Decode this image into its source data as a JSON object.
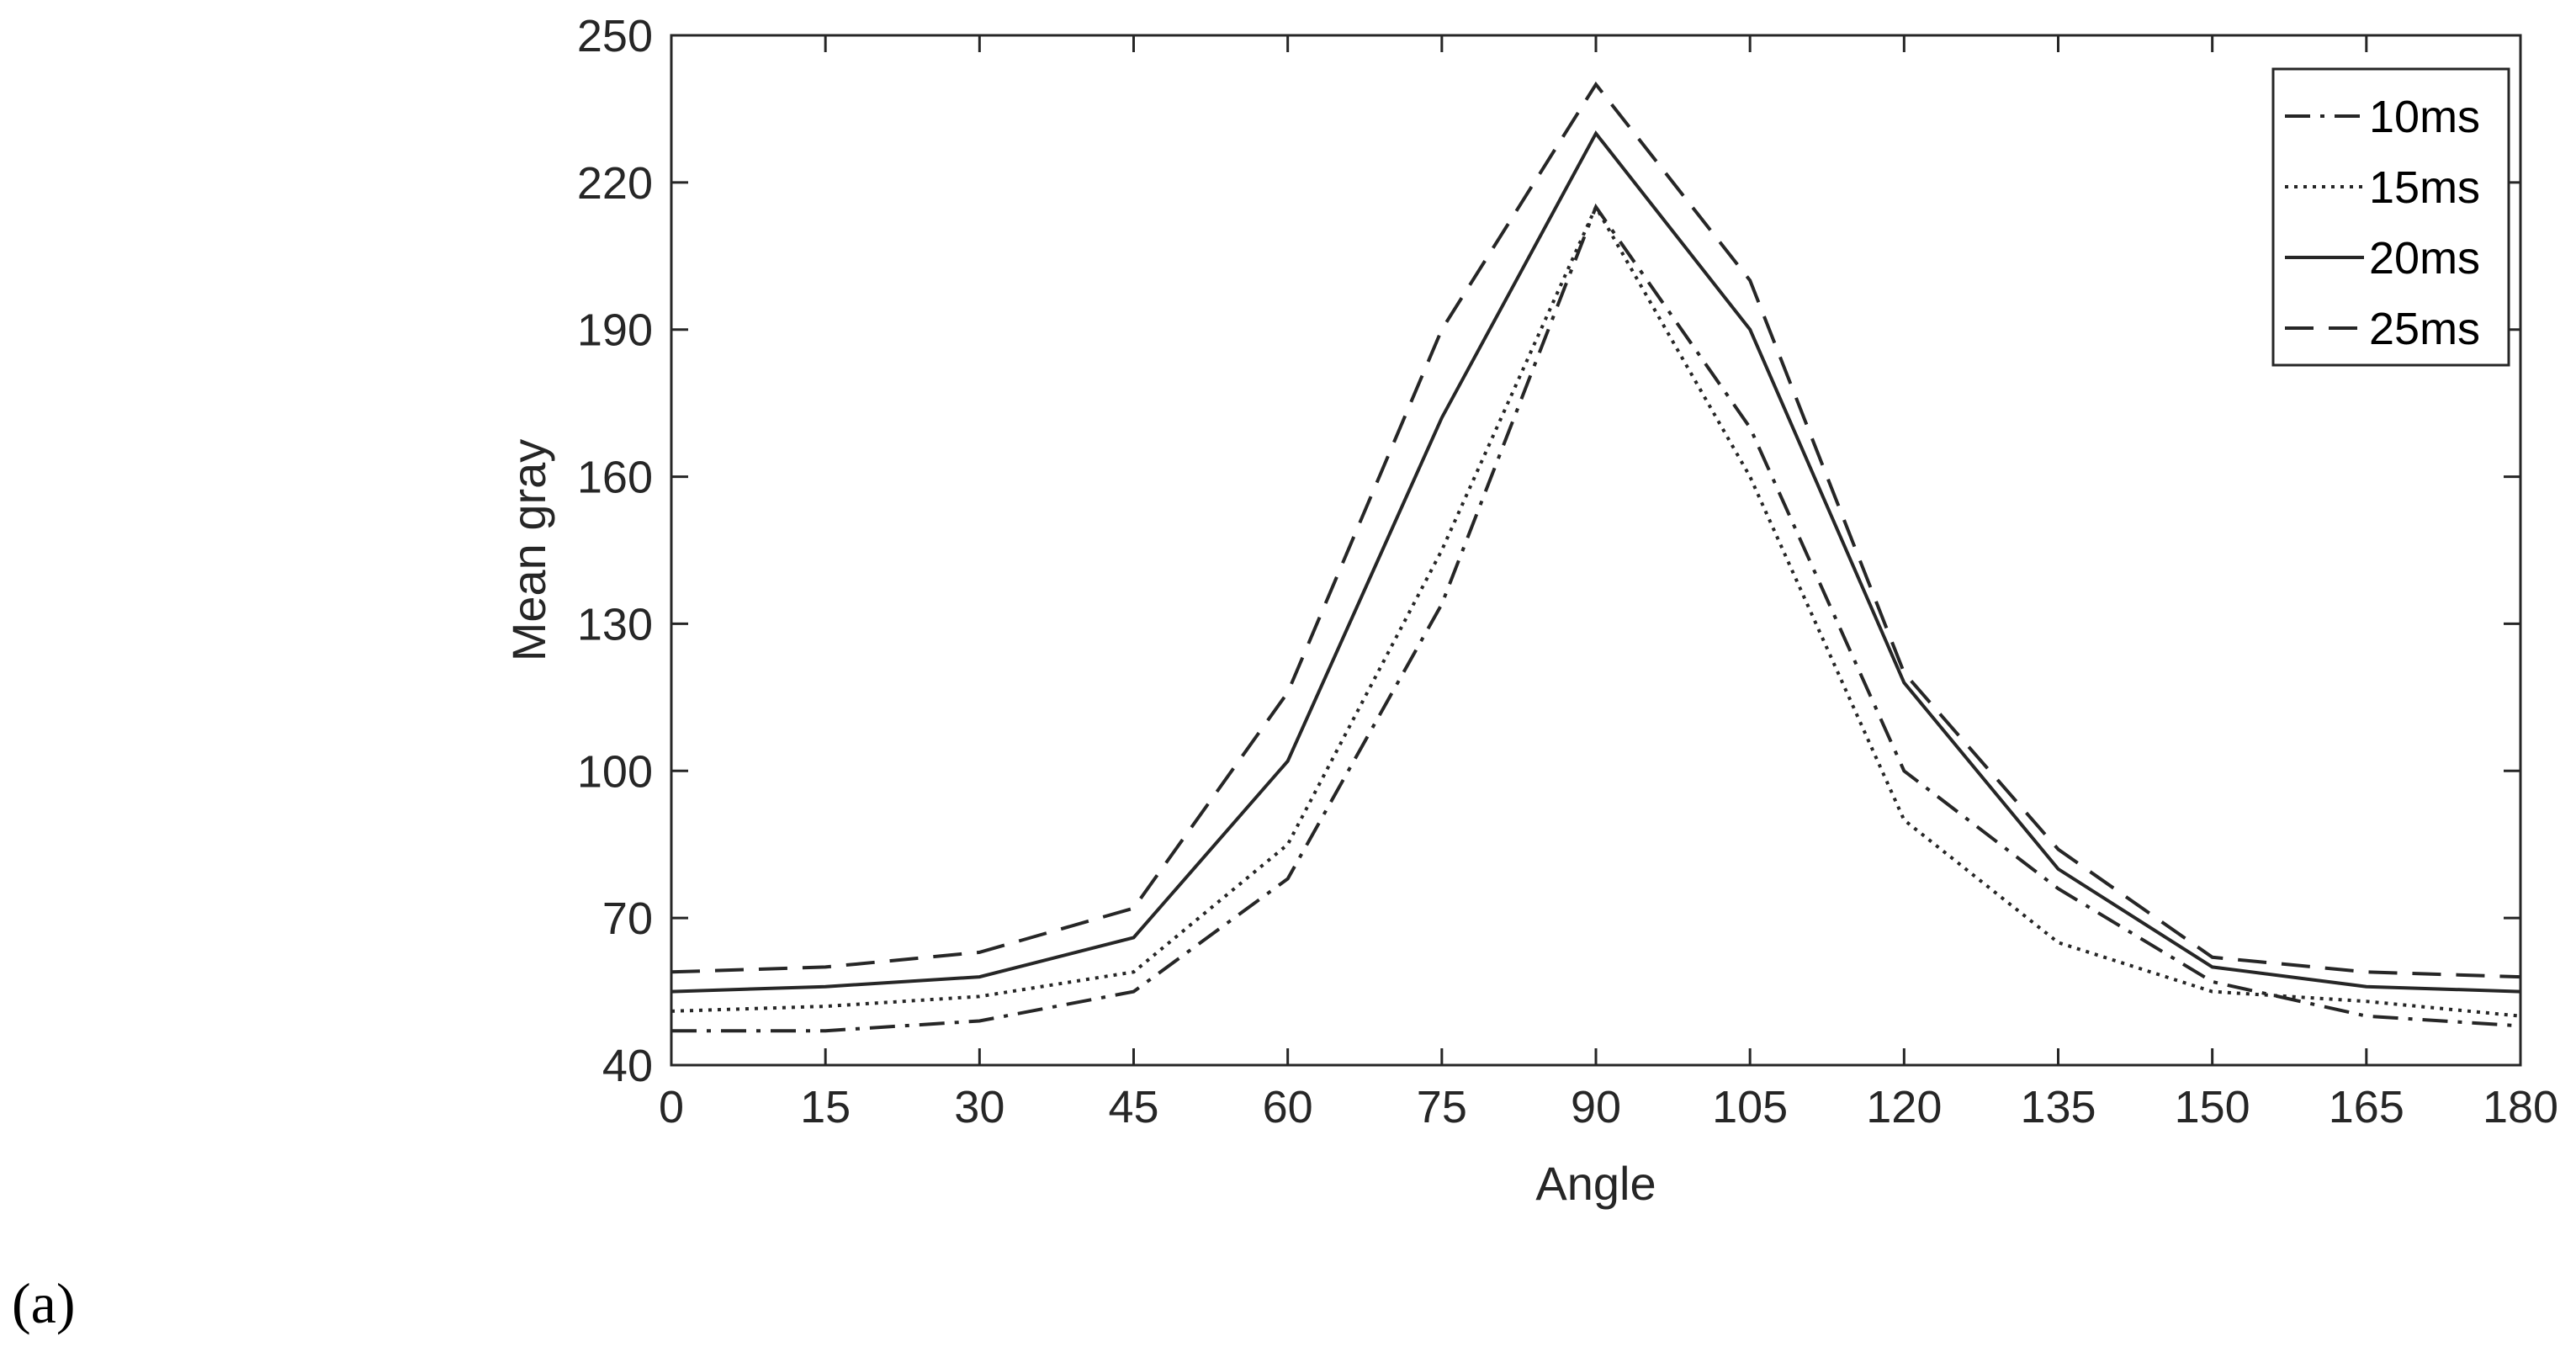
{
  "panel_label": "(a)",
  "chart_data": {
    "type": "line",
    "xlabel": "Angle",
    "ylabel": "Mean gray",
    "x": [
      0,
      15,
      30,
      45,
      60,
      75,
      90,
      105,
      120,
      135,
      150,
      165,
      180
    ],
    "xlim": [
      0,
      180
    ],
    "ylim": [
      40,
      250
    ],
    "xticks": [
      0,
      15,
      30,
      45,
      60,
      75,
      90,
      105,
      120,
      135,
      150,
      165,
      180
    ],
    "yticks": [
      40,
      70,
      100,
      130,
      160,
      190,
      220,
      250
    ],
    "grid": false,
    "legend_position": "top-right",
    "series": [
      {
        "name": "10ms",
        "style": "dash-dot",
        "values": [
          47,
          47,
          49,
          55,
          78,
          134,
          215,
          170,
          100,
          76,
          57,
          50,
          48
        ]
      },
      {
        "name": "15ms",
        "style": "dotted",
        "values": [
          51,
          52,
          54,
          59,
          85,
          145,
          215,
          160,
          90,
          65,
          55,
          53,
          50
        ]
      },
      {
        "name": "20ms",
        "style": "solid",
        "values": [
          55,
          56,
          58,
          66,
          102,
          172,
          230,
          190,
          118,
          80,
          60,
          56,
          55
        ]
      },
      {
        "name": "25ms",
        "style": "dashed",
        "values": [
          59,
          60,
          63,
          72,
          116,
          190,
          240,
          200,
          120,
          84,
          62,
          59,
          58
        ]
      }
    ],
    "colors": {
      "line": "#262626",
      "axis": "#262626"
    }
  }
}
